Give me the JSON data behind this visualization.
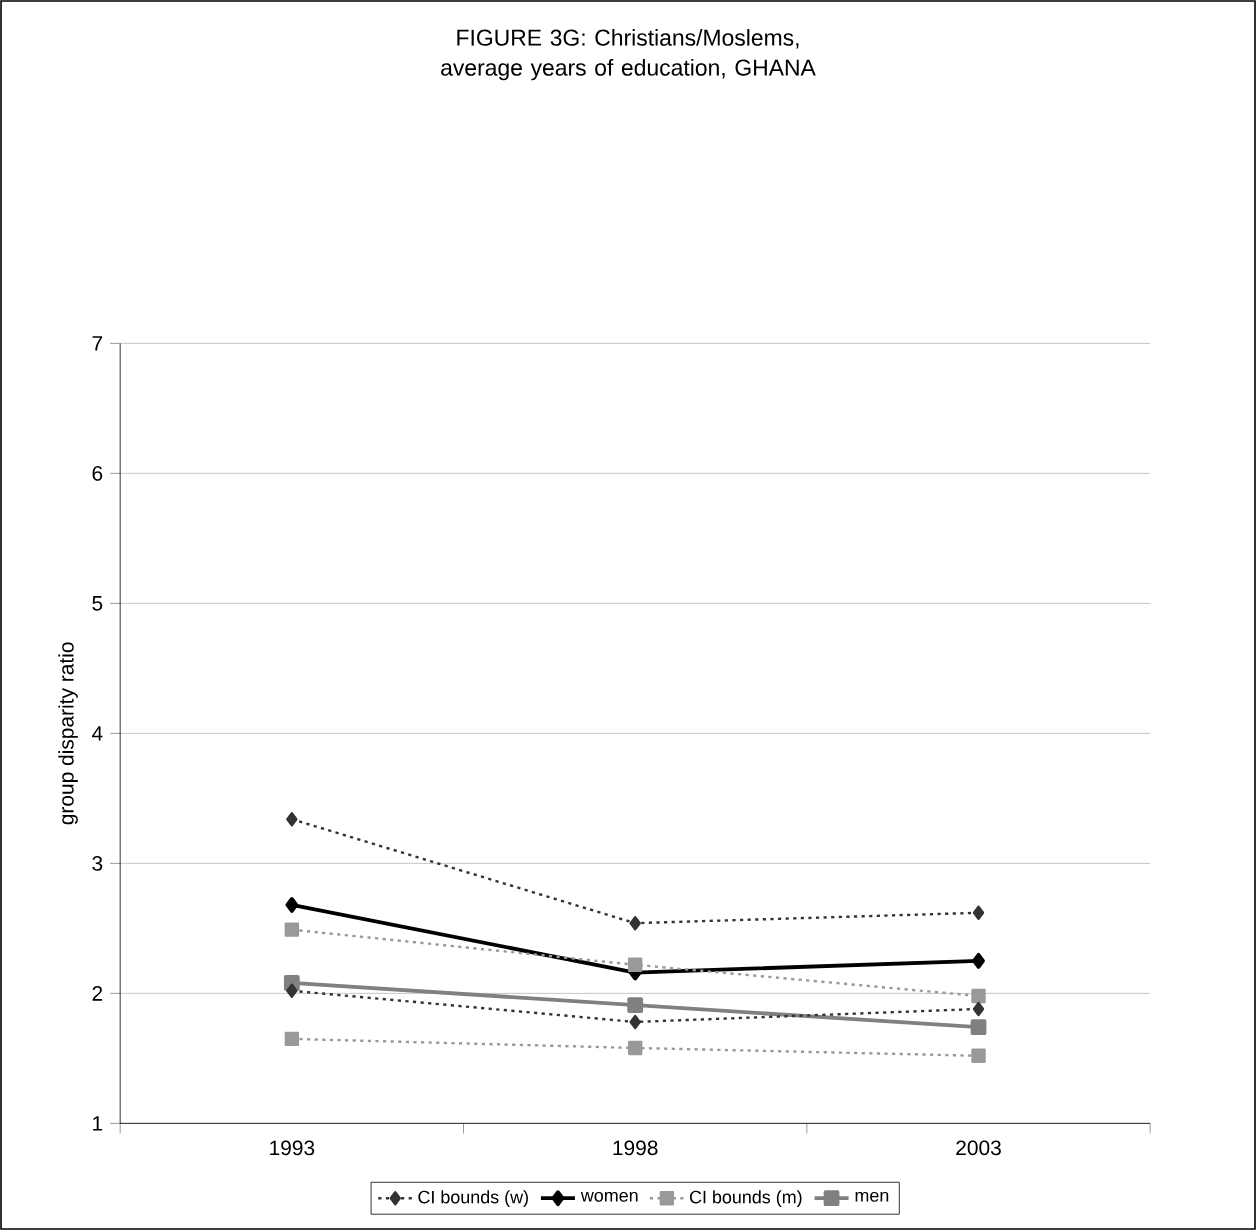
{
  "chart_data": {
    "type": "line",
    "title": "FIGURE 3G: Christians/Moslems, average years of education, GHANA",
    "ylabel": "group disparity ratio",
    "categories": [
      "1993",
      "1998",
      "2003"
    ],
    "ylim": [
      1,
      7
    ],
    "yticks": [
      1,
      2,
      3,
      4,
      5,
      6,
      7
    ],
    "grid": "y",
    "legend": "bottom",
    "series": [
      {
        "name": "CI bounds (w)",
        "color": "#333333",
        "marker": "diamond",
        "line_style": "dotted",
        "values": [
          3.34,
          2.54,
          2.62
        ]
      },
      {
        "name": "women",
        "color": "#000000",
        "marker": "diamond",
        "line_style": "solid",
        "values": [
          2.68,
          2.16,
          2.25
        ]
      },
      {
        "name": "CI bounds (m)",
        "color": "#999999",
        "marker": "square",
        "line_style": "dotted",
        "values": [
          2.49,
          2.22,
          1.98
        ]
      },
      {
        "name": "men",
        "color": "#808080",
        "marker": "square",
        "line_style": "solid",
        "values": [
          2.08,
          1.91,
          1.74
        ]
      },
      {
        "color": "#333333",
        "marker": "diamond",
        "line_style": "dotted",
        "values": [
          2.02,
          1.78,
          1.88
        ]
      },
      {
        "color": "#999999",
        "marker": "square",
        "line_style": "dotted",
        "values": [
          1.65,
          1.58,
          1.52
        ]
      }
    ]
  }
}
